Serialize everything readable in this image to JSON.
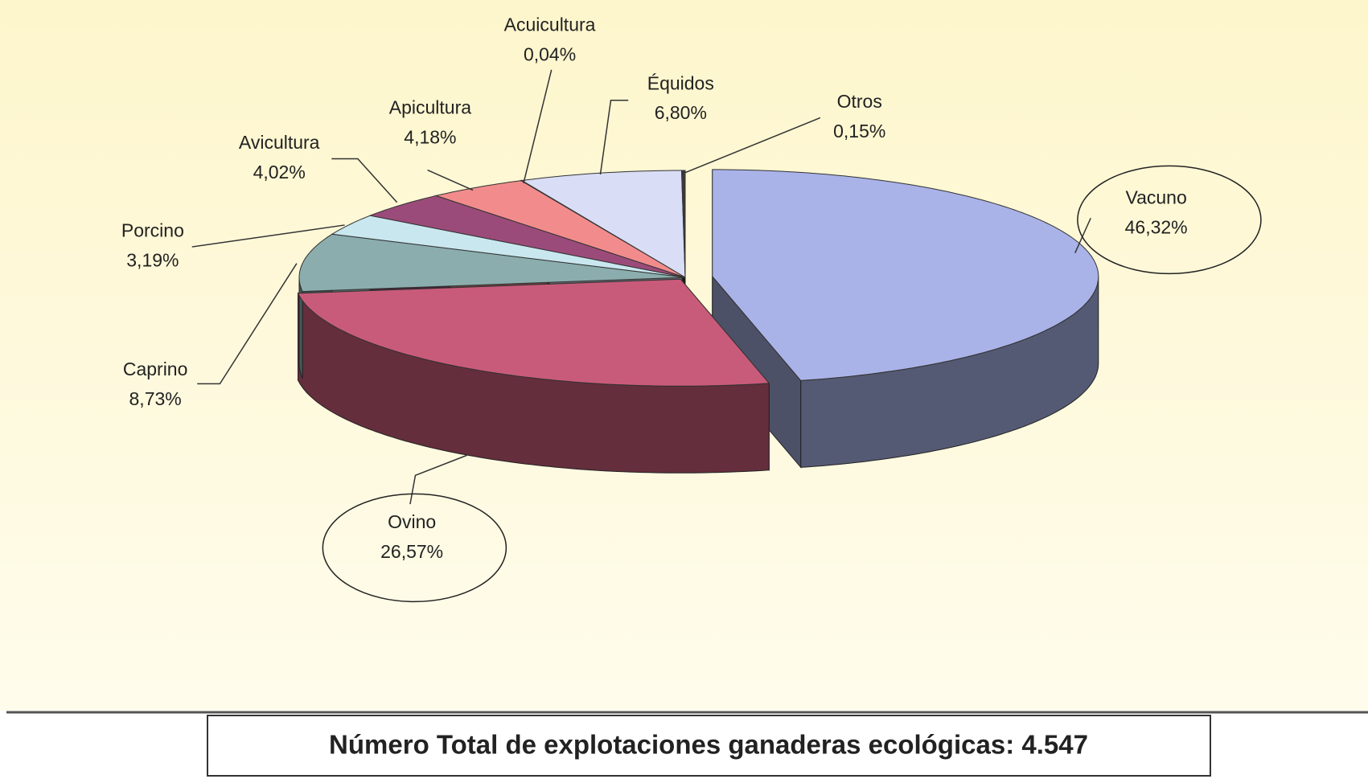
{
  "chart_data": {
    "type": "pie3d",
    "categories": [
      "Vacuno",
      "Ovino",
      "Caprino",
      "Porcino",
      "Avicultura",
      "Apicultura",
      "Acuicultura",
      "Équidos",
      "Otros"
    ],
    "values": [
      46.32,
      26.57,
      8.73,
      3.19,
      4.02,
      4.18,
      0.04,
      6.8,
      0.15
    ],
    "value_labels": [
      "46,32%",
      "26,57%",
      "8,73%",
      "3,19%",
      "4,02%",
      "4,18%",
      "0,04%",
      "6,80%",
      "0,15%"
    ],
    "colors": [
      "#aab3e8",
      "#c95b7a",
      "#8badad",
      "#c9e7ef",
      "#9b4b7a",
      "#f28c8c",
      "#555566",
      "#d9ddf5",
      "#3a3a3a"
    ],
    "caption": "Número Total de explotaciones ganaderas ecológicas: 4.547"
  }
}
